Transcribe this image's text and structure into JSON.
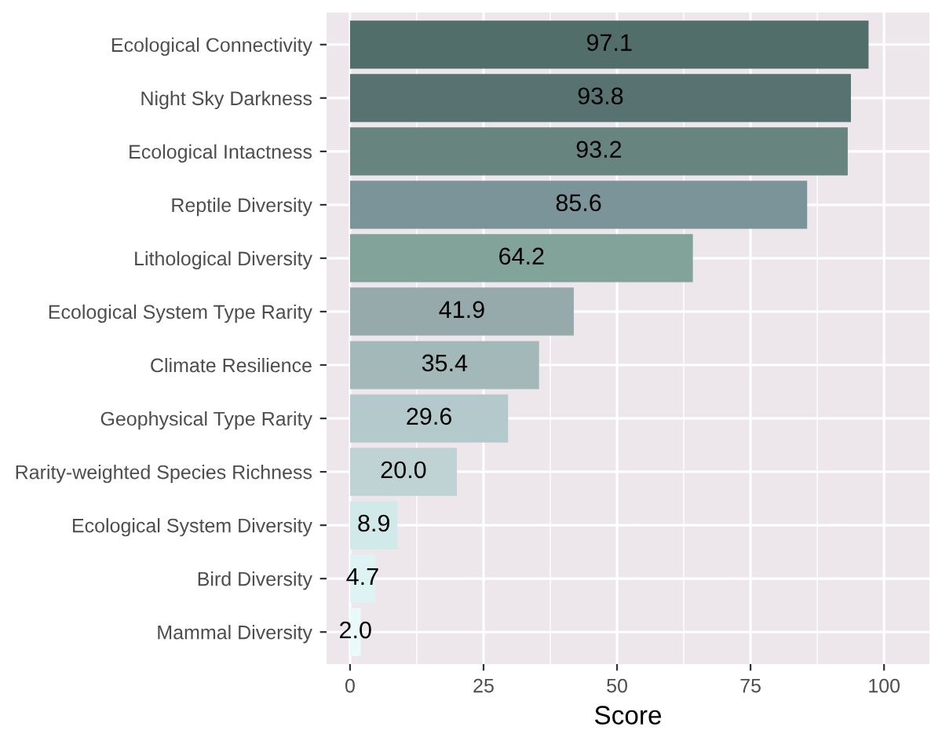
{
  "chart_data": {
    "type": "bar",
    "orientation": "horizontal",
    "xlabel": "Score",
    "categories": [
      "Ecological Connectivity",
      "Night Sky Darkness",
      "Ecological Intactness",
      "Reptile Diversity",
      "Lithological Diversity",
      "Ecological System Type Rarity",
      "Climate Resilience",
      "Geophysical Type Rarity",
      "Rarity-weighted Species Richness",
      "Ecological System Diversity",
      "Bird Diversity",
      "Mammal Diversity"
    ],
    "values": [
      97.1,
      93.8,
      93.2,
      85.6,
      64.2,
      41.9,
      35.4,
      29.6,
      20.0,
      8.9,
      4.7,
      2.0
    ],
    "colors": [
      "#526e6a",
      "#577270",
      "#68847f",
      "#7a949a",
      "#82a39a",
      "#97aaab",
      "#a3b9b9",
      "#b3c9cc",
      "#bfd3d4",
      "#d1e9e8",
      "#def3f4",
      "#eaf9fa"
    ],
    "value_labels": [
      "97.1",
      "93.8",
      "93.2",
      "85.6",
      "64.2",
      "41.9",
      "35.4",
      "29.6",
      "20.0",
      "8.9",
      "4.7",
      "2.0"
    ],
    "xlim": [
      -4.4,
      108.5
    ],
    "xticks": [
      0,
      25,
      50,
      75,
      100
    ],
    "grid": true
  }
}
